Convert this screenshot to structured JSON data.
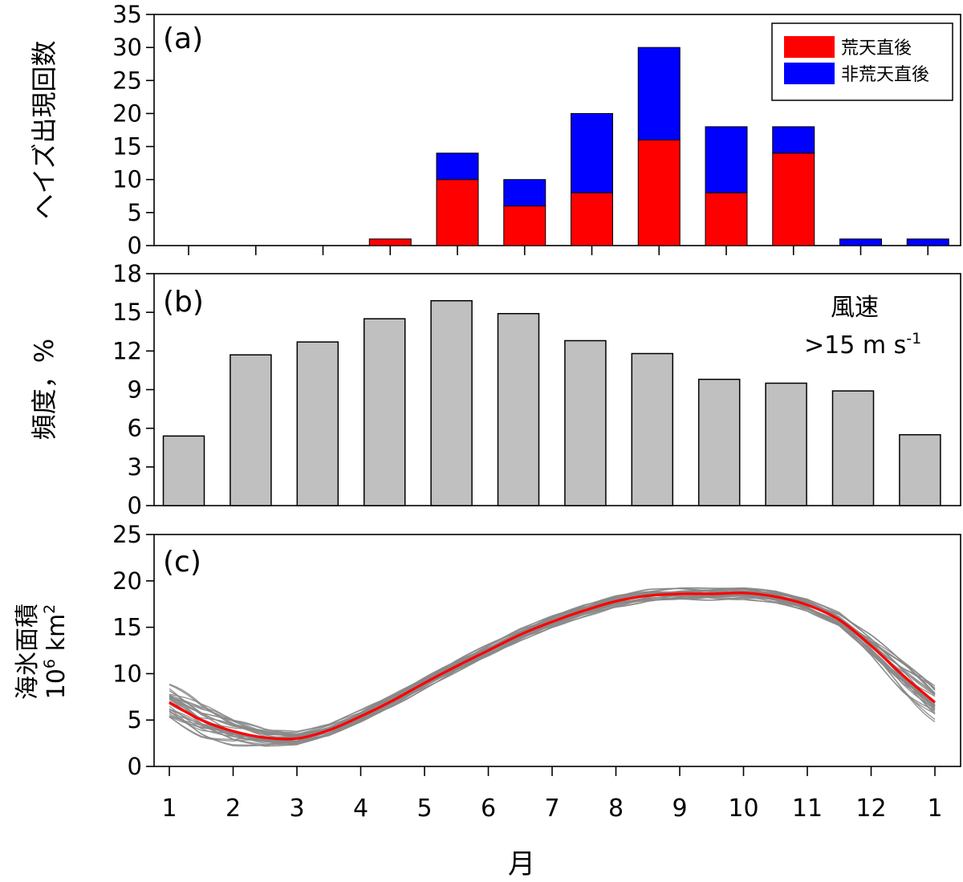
{
  "chart_data": [
    {
      "panel_label": "(a)",
      "type": "bar",
      "stacked": true,
      "ylabel": "ヘイズ出現回数",
      "ylim": [
        0,
        35
      ],
      "yticks": [
        0,
        5,
        10,
        15,
        20,
        25,
        30,
        35
      ],
      "categories": [
        "1",
        "2",
        "3",
        "4",
        "5",
        "6",
        "7",
        "8",
        "9",
        "10",
        "11",
        "12"
      ],
      "legend_position": "top-right",
      "series": [
        {
          "name": "荒天直後",
          "color": "#ff0000",
          "values": [
            0,
            0,
            0,
            1,
            10,
            6,
            8,
            16,
            8,
            14,
            0,
            0
          ]
        },
        {
          "name": "非荒天直後",
          "color": "#0000ff",
          "values": [
            0,
            0,
            0,
            0,
            4,
            4,
            12,
            14,
            10,
            4,
            1,
            1
          ]
        }
      ]
    },
    {
      "panel_label": "(b)",
      "type": "bar",
      "ylabel": "頻度，%",
      "ylim": [
        0,
        18
      ],
      "yticks": [
        0,
        3,
        6,
        9,
        12,
        15,
        18
      ],
      "categories": [
        "1",
        "2",
        "3",
        "4",
        "5",
        "6",
        "7",
        "8",
        "9",
        "10",
        "11",
        "12"
      ],
      "bar_color": "#c0c0c0",
      "annotation": {
        "line1": "風速",
        "line2": ">15 m s",
        "superscript": "-1"
      },
      "values": [
        5.4,
        11.7,
        12.7,
        14.5,
        15.9,
        14.9,
        12.8,
        11.8,
        9.8,
        9.5,
        8.9,
        5.5
      ]
    },
    {
      "panel_label": "(c)",
      "type": "line",
      "ylabel_line1": "海氷面積",
      "ylabel_line2": "10",
      "ylabel_sup1": "6",
      "ylabel_unit": " km",
      "ylabel_sup2": "2",
      "ylim": [
        0,
        25
      ],
      "yticks": [
        0,
        5,
        10,
        15,
        20,
        25
      ],
      "xlim": [
        1,
        13
      ],
      "xticks": [
        1,
        2,
        3,
        4,
        5,
        6,
        7,
        8,
        9,
        10,
        11,
        12,
        13
      ],
      "xticklabels": [
        "1",
        "2",
        "3",
        "4",
        "5",
        "6",
        "7",
        "8",
        "9",
        "10",
        "11",
        "12",
        "1"
      ],
      "xlabel": "月",
      "mean": {
        "color": "#ff0000",
        "x": [
          1,
          1.5,
          2,
          2.5,
          3,
          3.5,
          4,
          4.5,
          5,
          5.5,
          6,
          6.5,
          7,
          7.5,
          8,
          8.5,
          9,
          9.5,
          10,
          10.5,
          11,
          11.5,
          12,
          12.5,
          13
        ],
        "y": [
          6.9,
          5.0,
          3.8,
          3.1,
          3.0,
          3.9,
          5.4,
          7.1,
          9.0,
          10.8,
          12.5,
          14.2,
          15.6,
          16.8,
          17.8,
          18.4,
          18.6,
          18.6,
          18.7,
          18.3,
          17.4,
          15.8,
          13.0,
          9.8,
          6.9
        ]
      },
      "ensemble": {
        "color": "#888888",
        "count": 30
      }
    }
  ]
}
